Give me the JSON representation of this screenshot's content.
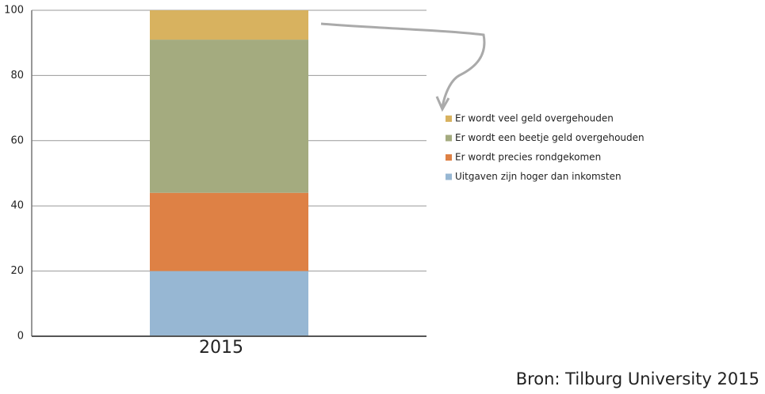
{
  "chart_data": {
    "type": "stacked-bar",
    "categories": [
      "2015"
    ],
    "series": [
      {
        "name": "Uitgaven zijn hoger dan inkomsten",
        "color": "#97b7d3",
        "values": [
          20
        ]
      },
      {
        "name": "Er wordt precies rondgekomen",
        "color": "#de8145",
        "values": [
          24
        ]
      },
      {
        "name": "Er wordt een beetje geld overgehouden",
        "color": "#a4ab7f",
        "values": [
          47
        ]
      },
      {
        "name": "Er wordt veel geld overgehouden",
        "color": "#d8b25f",
        "values": [
          9
        ]
      }
    ],
    "ylim": [
      0,
      100
    ],
    "yticks": [
      0,
      20,
      40,
      60,
      80,
      100
    ],
    "grid": true,
    "legend": "right",
    "source": "Bron: Tilburg University 2015"
  }
}
